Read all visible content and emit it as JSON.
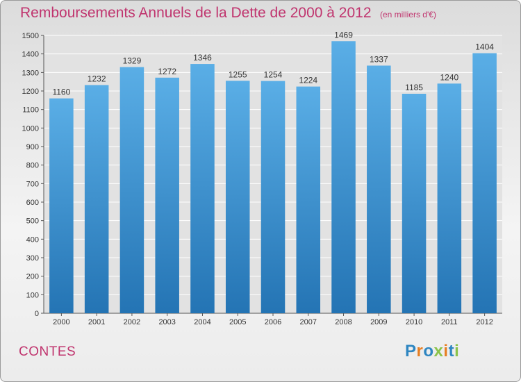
{
  "header": {
    "title": "Remboursements Annuels de la Dette de 2000 à 2012",
    "unit": "(en milliers d'€)"
  },
  "footer": {
    "city": "CONTES",
    "logo": "Proxiti",
    "logo_colors": [
      "#2e86c1",
      "#e67e22",
      "#2e86c1",
      "#8bc34a",
      "#e67e22",
      "#2e86c1",
      "#8bc34a"
    ]
  },
  "colors": {
    "title": "#c0346e",
    "bar_top": "#5aaee6",
    "bar_bottom": "#2474b4",
    "grid": "#ffffff",
    "plot_bg": "#e2e2e2"
  },
  "chart_data": {
    "type": "bar",
    "title": "Remboursements Annuels de la Dette de 2000 à 2012",
    "subtitle": "(en milliers d'€)",
    "categories": [
      "2000",
      "2001",
      "2002",
      "2003",
      "2004",
      "2005",
      "2006",
      "2007",
      "2008",
      "2009",
      "2010",
      "2011",
      "2012"
    ],
    "values": [
      1160,
      1232,
      1329,
      1272,
      1346,
      1255,
      1254,
      1224,
      1469,
      1337,
      1185,
      1240,
      1404
    ],
    "ylim": [
      0,
      1500
    ],
    "yticks": [
      0,
      100,
      200,
      300,
      400,
      500,
      600,
      700,
      800,
      900,
      1000,
      1100,
      1200,
      1300,
      1400,
      1500
    ],
    "grid": true,
    "data_labels": true,
    "legend": false
  }
}
